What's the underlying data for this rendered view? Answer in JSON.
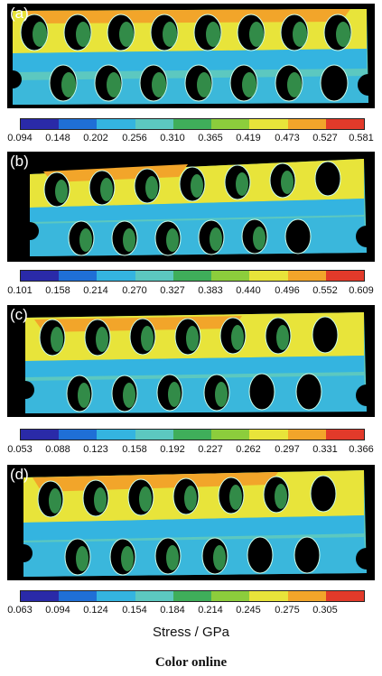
{
  "panels": [
    {
      "label": "(a)",
      "ticks": [
        "0.094",
        "0.148",
        "0.202",
        "0.256",
        "0.310",
        "0.365",
        "0.419",
        "0.473",
        "0.527",
        "0.581"
      ]
    },
    {
      "label": "(b)",
      "ticks": [
        "0.101",
        "0.158",
        "0.214",
        "0.270",
        "0.327",
        "0.383",
        "0.440",
        "0.496",
        "0.552",
        "0.609"
      ]
    },
    {
      "label": "(c)",
      "ticks": [
        "0.053",
        "0.088",
        "0.123",
        "0.158",
        "0.192",
        "0.227",
        "0.262",
        "0.297",
        "0.331",
        "0.366"
      ]
    },
    {
      "label": "(d)",
      "ticks": [
        "0.063",
        "0.094",
        "0.124",
        "0.154",
        "0.184",
        "0.214",
        "0.245",
        "0.275",
        "0.305"
      ]
    }
  ],
  "colorbar_colors": [
    "#2a2aa8",
    "#1f6fd6",
    "#34b4e0",
    "#5cc8c0",
    "#3fae5a",
    "#8ccd3c",
    "#e8e43a",
    "#f2a52a",
    "#e23a2a"
  ],
  "axis_title": "Stress / GPa",
  "footer": "Color online"
}
